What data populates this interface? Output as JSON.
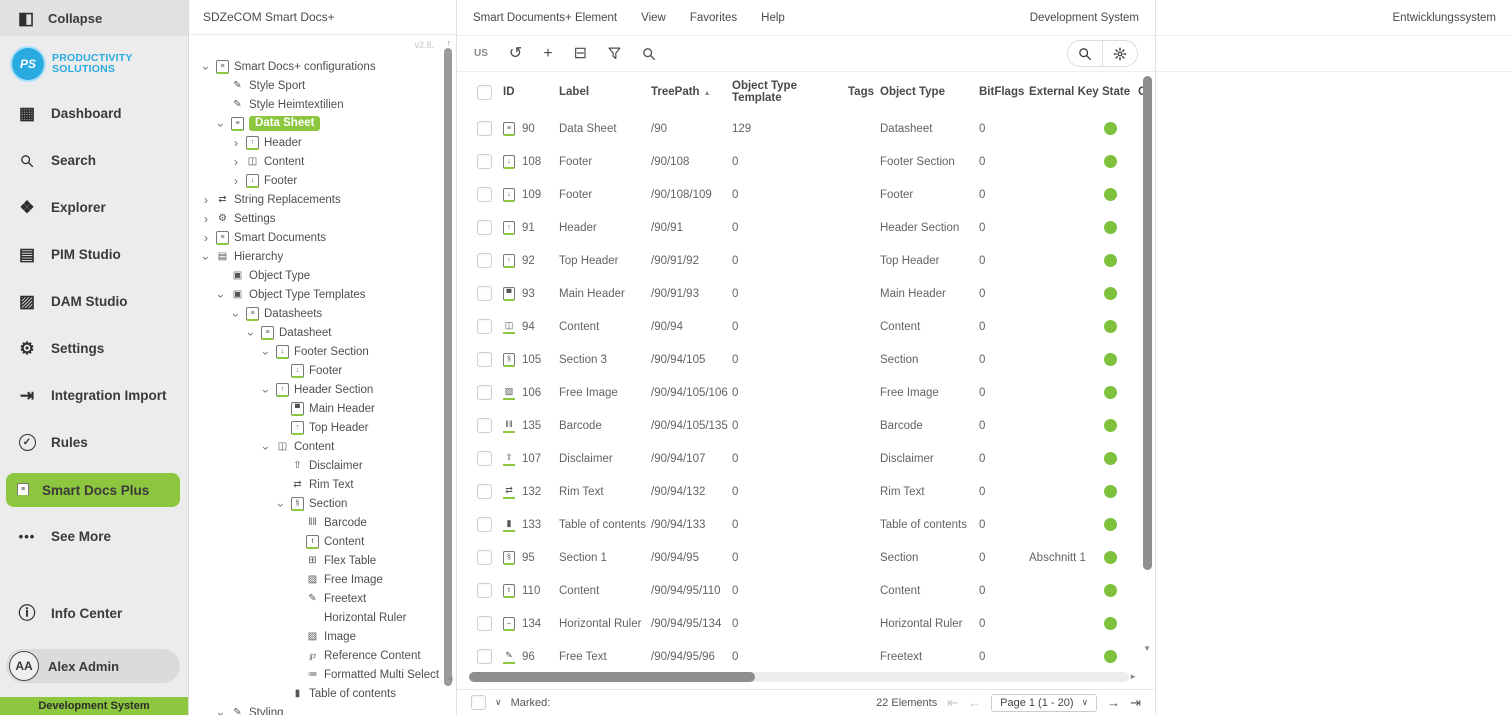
{
  "colors": {
    "accent_green": "#8dc63f",
    "state_green": "#7ec13d",
    "brand_blue": "#29abe2",
    "sidebar_bg": "#ececec"
  },
  "icons": {
    "collapse-icon": {
      "g": "◧"
    },
    "dashboard-icon": {
      "g": "▦"
    },
    "search-icon": {
      "svg": "search"
    },
    "explorer-icon": {
      "g": "❖"
    },
    "pim-studio-icon": {
      "g": "▤"
    },
    "dam-studio-icon": {
      "g": "▨"
    },
    "settings-icon": {
      "g": "⚙"
    },
    "integration-import-icon": {
      "g": "⇥"
    },
    "rules-icon": {
      "g": "✓",
      "cls": "circled"
    },
    "smart-docs-icon": {
      "g": "≡",
      "page": true
    },
    "see-more-icon": {
      "g": "•••",
      "cls": "dots"
    },
    "info-center-icon": {
      "g": "ⓘ"
    },
    "refresh-icon": {
      "g": "↺"
    },
    "add-icon": {
      "g": "+"
    },
    "folder-remove-icon": {
      "g": "⊟"
    },
    "filter-icon": {
      "svg": "funnel"
    },
    "gear-icon": {
      "svg": "gear"
    },
    "pdf-doc-icon": {
      "g": "≡",
      "page": true
    },
    "style-brush-icon": {
      "g": "✎"
    },
    "header-doc-icon": {
      "g": "↑",
      "page": true
    },
    "footer-doc-icon": {
      "g": "↓",
      "page": true
    },
    "main-header-doc-icon": {
      "g": "▀",
      "page": true
    },
    "content-book-icon": {
      "g": "◫"
    },
    "content-doc-icon": {
      "g": "t",
      "page": true
    },
    "section-bookmark-icon": {
      "g": "§",
      "page": true
    },
    "toc-bookmark-icon": {
      "g": "▮"
    },
    "barcode-icon": {
      "g": "‖‖"
    },
    "disclaimer-icon": {
      "g": "⇧"
    },
    "rim-text-icon": {
      "g": "⇄"
    },
    "swap-icon": {
      "g": "⇄"
    },
    "flex-table-icon": {
      "g": "⊞"
    },
    "image-icon": {
      "g": "▨"
    },
    "freetext-pen-icon": {
      "g": "✎"
    },
    "hruler-icon": {
      "g": "–",
      "page": true
    },
    "clip-icon": {
      "g": "℘"
    },
    "multiselect-icon": {
      "g": "≔"
    },
    "hierarchy-icon": {
      "g": "▤"
    },
    "cube-icon": {
      "g": "▣"
    },
    "chevron-icon": {
      "g": "›"
    },
    "sort-asc-icon": {
      "g": "▲"
    },
    "caret-down-icon": {
      "g": "∨"
    },
    "first-page-icon": {
      "g": "⇤"
    },
    "prev-page-icon": {
      "g": "←"
    },
    "next-page-icon": {
      "g": "→"
    },
    "last-page-icon": {
      "g": "⇥"
    }
  },
  "sidebar": {
    "collapse_label": "Collapse",
    "logo_initials": "PS",
    "logo_line1": "PRODUCTIVITY",
    "logo_line2": "SOLUTIONS",
    "items": [
      {
        "key": "dashboard",
        "icon": "dashboard-icon",
        "label": "Dashboard",
        "active": false
      },
      {
        "key": "search",
        "icon": "search-icon",
        "label": "Search",
        "active": false
      },
      {
        "key": "explorer",
        "icon": "explorer-icon",
        "label": "Explorer",
        "active": false
      },
      {
        "key": "pim-studio",
        "icon": "pim-studio-icon",
        "label": "PIM Studio",
        "active": false
      },
      {
        "key": "dam-studio",
        "icon": "dam-studio-icon",
        "label": "DAM Studio",
        "active": false
      },
      {
        "key": "settings",
        "icon": "settings-icon",
        "label": "Settings",
        "active": false
      },
      {
        "key": "integration-import",
        "icon": "integration-import-icon",
        "label": "Integration Import",
        "active": false
      },
      {
        "key": "rules",
        "icon": "rules-icon",
        "label": "Rules",
        "active": false
      },
      {
        "key": "smart-docs-plus",
        "icon": "smart-docs-icon",
        "label": "Smart Docs Plus",
        "active": true
      },
      {
        "key": "see-more",
        "icon": "see-more-icon",
        "label": "See More",
        "active": false
      }
    ],
    "info_center_label": "Info Center",
    "user": {
      "initials": "AA",
      "name": "Alex Admin"
    },
    "system_banner": "Development System"
  },
  "tree_panel": {
    "title": "SDZeCOM Smart Docs+",
    "version": "v2.8.",
    "items": [
      {
        "level": 0,
        "chevron": "expanded",
        "icon": "pdf-doc-icon",
        "label": "Smart Docs+ configurations",
        "selected": false
      },
      {
        "level": 1,
        "chevron": "none",
        "icon": "style-brush-icon",
        "label": "Style Sport",
        "selected": false
      },
      {
        "level": 1,
        "chevron": "none",
        "icon": "style-brush-icon",
        "label": "Style Heimtextilien",
        "selected": false
      },
      {
        "level": 1,
        "chevron": "expanded",
        "icon": "pdf-doc-icon",
        "label": "Data Sheet",
        "selected": true
      },
      {
        "level": 2,
        "chevron": "collapsed",
        "icon": "header-doc-icon",
        "label": "Header",
        "selected": false
      },
      {
        "level": 2,
        "chevron": "collapsed",
        "icon": "content-book-icon",
        "label": "Content",
        "selected": false
      },
      {
        "level": 2,
        "chevron": "collapsed",
        "icon": "footer-doc-icon",
        "label": "Footer",
        "selected": false
      },
      {
        "level": 0,
        "chevron": "collapsed",
        "icon": "swap-icon",
        "label": "String Replacements",
        "selected": false
      },
      {
        "level": 0,
        "chevron": "collapsed",
        "icon": "settings-icon",
        "label": "Settings",
        "selected": false
      },
      {
        "level": 0,
        "chevron": "collapsed",
        "icon": "smart-docs-icon",
        "label": "Smart Documents",
        "selected": false
      },
      {
        "level": 0,
        "chevron": "expanded",
        "icon": "hierarchy-icon",
        "label": "Hierarchy",
        "selected": false
      },
      {
        "level": 1,
        "chevron": "none",
        "icon": "cube-icon",
        "label": "Object Type",
        "selected": false
      },
      {
        "level": 1,
        "chevron": "expanded",
        "icon": "cube-icon",
        "label": "Object Type Templates",
        "selected": false
      },
      {
        "level": 2,
        "chevron": "expanded",
        "icon": "pdf-doc-icon",
        "label": "Datasheets",
        "selected": false
      },
      {
        "level": 3,
        "chevron": "expanded",
        "icon": "pdf-doc-icon",
        "label": "Datasheet",
        "selected": false
      },
      {
        "level": 4,
        "chevron": "expanded",
        "icon": "footer-doc-icon",
        "label": "Footer Section",
        "selected": false
      },
      {
        "level": 5,
        "chevron": "none",
        "icon": "footer-doc-icon",
        "label": "Footer",
        "selected": false
      },
      {
        "level": 4,
        "chevron": "expanded",
        "icon": "header-doc-icon",
        "label": "Header Section",
        "selected": false
      },
      {
        "level": 5,
        "chevron": "none",
        "icon": "main-header-doc-icon",
        "label": "Main Header",
        "selected": false
      },
      {
        "level": 5,
        "chevron": "none",
        "icon": "header-doc-icon",
        "label": "Top Header",
        "selected": false
      },
      {
        "level": 4,
        "chevron": "expanded",
        "icon": "content-book-icon",
        "label": "Content",
        "selected": false
      },
      {
        "level": 5,
        "chevron": "none",
        "icon": "disclaimer-icon",
        "label": "Disclaimer",
        "selected": false
      },
      {
        "level": 5,
        "chevron": "none",
        "icon": "rim-text-icon",
        "label": "Rim Text",
        "selected": false
      },
      {
        "level": 5,
        "chevron": "expanded",
        "icon": "section-bookmark-icon",
        "label": "Section",
        "selected": false
      },
      {
        "level": 6,
        "chevron": "none",
        "icon": "barcode-icon",
        "label": "Barcode",
        "selected": false
      },
      {
        "level": 6,
        "chevron": "none",
        "icon": "content-doc-icon",
        "label": "Content",
        "selected": false
      },
      {
        "level": 6,
        "chevron": "none",
        "icon": "flex-table-icon",
        "label": "Flex Table",
        "selected": false
      },
      {
        "level": 6,
        "chevron": "none",
        "icon": "image-icon",
        "label": "Free Image",
        "selected": false
      },
      {
        "level": 6,
        "chevron": "none",
        "icon": "freetext-pen-icon",
        "label": "Freetext",
        "selected": false
      },
      {
        "level": 6,
        "chevron": "none",
        "icon": "",
        "label": "Horizontal Ruler",
        "selected": false
      },
      {
        "level": 6,
        "chevron": "none",
        "icon": "image-icon",
        "label": "Image",
        "selected": false
      },
      {
        "level": 6,
        "chevron": "none",
        "icon": "clip-icon",
        "label": "Reference Content",
        "selected": false
      },
      {
        "level": 6,
        "chevron": "none",
        "icon": "multiselect-icon",
        "label": "Formatted Multi Select",
        "selected": false
      },
      {
        "level": 5,
        "chevron": "none",
        "icon": "toc-bookmark-icon",
        "label": "Table of contents",
        "selected": false
      },
      {
        "level": 1,
        "chevron": "expanded",
        "icon": "style-brush-icon",
        "label": "Styling",
        "selected": false
      }
    ]
  },
  "menubar": {
    "items": [
      "Smart Documents+ Element",
      "View",
      "Favorites",
      "Help"
    ],
    "right_label": "Development System"
  },
  "toolbar": {
    "locale": "US"
  },
  "table": {
    "columns": {
      "id": "ID",
      "label": "Label",
      "treepath": "TreePath",
      "object_type_template": "Object Type Template",
      "tags": "Tags",
      "object_type": "Object Type",
      "bitflags": "BitFlags",
      "external_key": "External Key",
      "state": "State",
      "truncated": "C"
    },
    "sort_column": "TreePath",
    "rows": [
      {
        "icon": "pdf-doc-icon",
        "id": "90",
        "label": "Data Sheet",
        "treepath": "/90",
        "object_type_template": "129",
        "tags": "",
        "object_type": "Datasheet",
        "bitflags": "0",
        "external_key": "",
        "state": "green"
      },
      {
        "icon": "footer-doc-icon",
        "id": "108",
        "label": "Footer",
        "treepath": "/90/108",
        "object_type_template": "0",
        "tags": "",
        "object_type": "Footer Section",
        "bitflags": "0",
        "external_key": "",
        "state": "green"
      },
      {
        "icon": "footer-doc-icon",
        "id": "109",
        "label": "Footer",
        "treepath": "/90/108/109",
        "object_type_template": "0",
        "tags": "",
        "object_type": "Footer",
        "bitflags": "0",
        "external_key": "",
        "state": "green"
      },
      {
        "icon": "header-doc-icon",
        "id": "91",
        "label": "Header",
        "treepath": "/90/91",
        "object_type_template": "0",
        "tags": "",
        "object_type": "Header Section",
        "bitflags": "0",
        "external_key": "",
        "state": "green"
      },
      {
        "icon": "header-doc-icon",
        "id": "92",
        "label": "Top Header",
        "treepath": "/90/91/92",
        "object_type_template": "0",
        "tags": "",
        "object_type": "Top Header",
        "bitflags": "0",
        "external_key": "",
        "state": "green"
      },
      {
        "icon": "main-header-doc-icon",
        "id": "93",
        "label": "Main Header",
        "treepath": "/90/91/93",
        "object_type_template": "0",
        "tags": "",
        "object_type": "Main Header",
        "bitflags": "0",
        "external_key": "",
        "state": "green"
      },
      {
        "icon": "content-book-icon",
        "id": "94",
        "label": "Content",
        "treepath": "/90/94",
        "object_type_template": "0",
        "tags": "",
        "object_type": "Content",
        "bitflags": "0",
        "external_key": "",
        "state": "green"
      },
      {
        "icon": "section-bookmark-icon",
        "id": "105",
        "label": "Section 3",
        "treepath": "/90/94/105",
        "object_type_template": "0",
        "tags": "",
        "object_type": "Section",
        "bitflags": "0",
        "external_key": "",
        "state": "green"
      },
      {
        "icon": "image-icon",
        "id": "106",
        "label": "Free Image",
        "treepath": "/90/94/105/106",
        "object_type_template": "0",
        "tags": "",
        "object_type": "Free Image",
        "bitflags": "0",
        "external_key": "",
        "state": "green"
      },
      {
        "icon": "barcode-icon",
        "id": "135",
        "label": "Barcode",
        "treepath": "/90/94/105/135",
        "object_type_template": "0",
        "tags": "",
        "object_type": "Barcode",
        "bitflags": "0",
        "external_key": "",
        "state": "green"
      },
      {
        "icon": "disclaimer-icon",
        "id": "107",
        "label": "Disclaimer",
        "treepath": "/90/94/107",
        "object_type_template": "0",
        "tags": "",
        "object_type": "Disclaimer",
        "bitflags": "0",
        "external_key": "",
        "state": "green"
      },
      {
        "icon": "rim-text-icon",
        "id": "132",
        "label": "Rim Text",
        "treepath": "/90/94/132",
        "object_type_template": "0",
        "tags": "",
        "object_type": "Rim Text",
        "bitflags": "0",
        "external_key": "",
        "state": "green"
      },
      {
        "icon": "toc-bookmark-icon",
        "id": "133",
        "label": "Table of contents",
        "treepath": "/90/94/133",
        "object_type_template": "0",
        "tags": "",
        "object_type": "Table of contents",
        "bitflags": "0",
        "external_key": "",
        "state": "green"
      },
      {
        "icon": "section-bookmark-icon",
        "id": "95",
        "label": "Section 1",
        "treepath": "/90/94/95",
        "object_type_template": "0",
        "tags": "",
        "object_type": "Section",
        "bitflags": "0",
        "external_key": "Abschnitt 1",
        "state": "green"
      },
      {
        "icon": "content-doc-icon",
        "id": "110",
        "label": "Content",
        "treepath": "/90/94/95/110",
        "object_type_template": "0",
        "tags": "",
        "object_type": "Content",
        "bitflags": "0",
        "external_key": "",
        "state": "green"
      },
      {
        "icon": "hruler-icon",
        "id": "134",
        "label": "Horizontal Ruler",
        "treepath": "/90/94/95/134",
        "object_type_template": "0",
        "tags": "",
        "object_type": "Horizontal Ruler",
        "bitflags": "0",
        "external_key": "",
        "state": "green"
      },
      {
        "icon": "freetext-pen-icon",
        "id": "96",
        "label": "Free Text",
        "treepath": "/90/94/95/96",
        "object_type_template": "0",
        "tags": "",
        "object_type": "Freetext",
        "bitflags": "0",
        "external_key": "",
        "state": "green"
      }
    ]
  },
  "footerbar": {
    "marked_label": "Marked:",
    "count": "22 Elements",
    "page": "Page 1 (1 - 20)"
  },
  "right_panel": {
    "title": "Entwicklungssystem"
  }
}
